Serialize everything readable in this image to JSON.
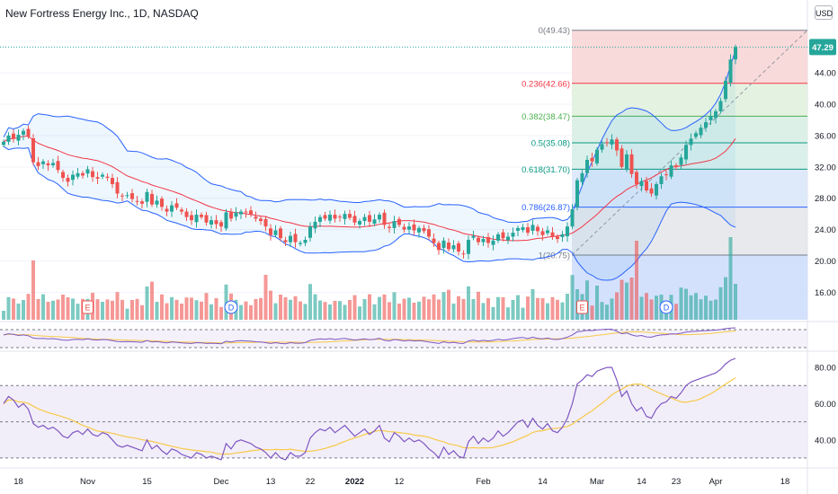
{
  "header": {
    "symbol_title": "New Fortress Energy Inc., 1D, NASDAQ",
    "currency": "USD"
  },
  "price_axis": {
    "ticks": [
      "44.00",
      "40.00",
      "36.00",
      "32.00",
      "28.00",
      "24.00",
      "20.00",
      "16.00"
    ],
    "last_price": "47.29"
  },
  "time_axis": {
    "labels": [
      "18",
      "Nov",
      "15",
      "Dec",
      "13",
      "22",
      "2022",
      "12",
      "Feb",
      "14",
      "Mar",
      "14",
      "23",
      "Apr",
      "18"
    ]
  },
  "rsi_axis": {
    "ticks": [
      "80.00",
      "60.00",
      "40.00"
    ]
  },
  "colors": {
    "up": "#26a69a",
    "down": "#ef5350",
    "bb_line": "#2962ff",
    "bb_basis": "#f23645",
    "rsi_line": "#7e57c2",
    "rsi_ma": "#f7c948",
    "last_price_label": "#26a69a"
  },
  "chart_data": [
    {
      "type": "candlestick",
      "title": "New Fortress Energy Inc., 1D, NASDAQ",
      "ylim": [
        12.5,
        51
      ],
      "x_dates": [
        "Oct 18",
        "Nov",
        "Nov 15",
        "Dec",
        "Dec 13",
        "Dec 22",
        "2022",
        "Jan 12",
        "Feb",
        "Feb 14",
        "Mar",
        "Mar 14",
        "Mar 23",
        "Apr",
        "Apr 18"
      ],
      "fibonacci_levels": [
        {
          "label": "0(49.43)",
          "value": 49.43,
          "color": "#787b86"
        },
        {
          "label": "0.236(42.66)",
          "value": 42.66,
          "color": "#f23645"
        },
        {
          "label": "0.382(38.47)",
          "value": 38.47,
          "color": "#4caf50"
        },
        {
          "label": "0.5(35.08)",
          "value": 35.08,
          "color": "#089981"
        },
        {
          "label": "0.618(31.70)",
          "value": 31.7,
          "color": "#089981"
        },
        {
          "label": "0.786(26.87)",
          "value": 26.87,
          "color": "#2962ff"
        },
        {
          "label": "1(20.75)",
          "value": 20.75,
          "color": "#787b86"
        }
      ],
      "volume_markers": [
        "E",
        "D",
        "E",
        "D"
      ],
      "closes": [
        35.2,
        36.0,
        35.6,
        36.1,
        36.6,
        35.9,
        32.6,
        32.1,
        32.7,
        32.2,
        32.5,
        31.6,
        30.6,
        30.1,
        31.0,
        31.2,
        30.9,
        31.7,
        30.7,
        30.5,
        31.0,
        30.6,
        29.8,
        28.6,
        28.3,
        28.4,
        27.9,
        27.6,
        27.3,
        28.8,
        27.2,
        27.7,
        26.9,
        26.3,
        27.1,
        26.8,
        26.3,
        25.6,
        25.2,
        25.9,
        25.6,
        24.9,
        25.2,
        24.7,
        24.4,
        26.2,
        25.4,
        26.2,
        26.3,
        26.2,
        25.9,
        25.4,
        25.1,
        24.4,
        23.3,
        23.9,
        22.9,
        22.4,
        23.2,
        22.4,
        22.3,
        22.7,
        24.4,
        25.0,
        25.6,
        25.4,
        25.9,
        25.4,
        25.6,
        26.0,
        25.5,
        24.9,
        25.1,
        25.6,
        25.0,
        25.3,
        25.9,
        24.6,
        24.2,
        25.1,
        24.6,
        24.0,
        24.4,
        23.9,
        24.2,
        23.8,
        23.1,
        22.3,
        21.4,
        22.6,
        21.5,
        22.0,
        21.2,
        20.9,
        22.7,
        23.2,
        22.4,
        22.8,
        22.3,
        22.6,
        23.4,
        22.9,
        23.1,
        23.6,
        24.2,
        24.3,
        23.6,
        24.6,
        23.8,
        23.3,
        23.9,
        23.1,
        22.8,
        23.4,
        24.4,
        26.6,
        30.3,
        31.2,
        32.9,
        32.7,
        34.2,
        34.9,
        35.1,
        35.5,
        34.1,
        32.0,
        33.6,
        31.1,
        29.8,
        30.2,
        29.0,
        28.6,
        29.8,
        30.8,
        31.0,
        32.2,
        32.0,
        33.2,
        34.8,
        35.6,
        36.3,
        37.0,
        37.7,
        38.5,
        39.1,
        40.4,
        43.0,
        45.7,
        47.29
      ],
      "bollinger": {
        "upper_peak": 40.0,
        "lower_trough": 16.2,
        "basis_end": 35.2
      }
    },
    {
      "type": "line",
      "title": "",
      "ylim": [
        25,
        88
      ],
      "y_ticks": [
        80,
        60,
        40
      ],
      "band": [
        30,
        70
      ],
      "series": [
        {
          "values": [
            60,
            64,
            62,
            58,
            60,
            57,
            49,
            47,
            48,
            46,
            47,
            45,
            42,
            41,
            44,
            45,
            43,
            46,
            43,
            42,
            44,
            43,
            40,
            37,
            36,
            37,
            36,
            35,
            34,
            40,
            35,
            37,
            34,
            32,
            35,
            34,
            32,
            31,
            30,
            33,
            32,
            30,
            31,
            30,
            29,
            38,
            35,
            39,
            40,
            39,
            38,
            36,
            35,
            33,
            30,
            33,
            30,
            29,
            33,
            31,
            31,
            33,
            41,
            44,
            46,
            45,
            47,
            44,
            46,
            48,
            45,
            42,
            44,
            46,
            43,
            45,
            48,
            41,
            39,
            44,
            42,
            39,
            41,
            39,
            40,
            38,
            35,
            33,
            30,
            36,
            32,
            34,
            31,
            30,
            39,
            42,
            38,
            41,
            39,
            41,
            45,
            42,
            44,
            47,
            50,
            51,
            47,
            52,
            48,
            46,
            49,
            45,
            44,
            47,
            52,
            60,
            71,
            73,
            76,
            75,
            78,
            79,
            80,
            80,
            73,
            64,
            67,
            60,
            56,
            58,
            53,
            52,
            57,
            60,
            61,
            64,
            63,
            66,
            70,
            72,
            73,
            74,
            75,
            76,
            77,
            79,
            82,
            84,
            85
          ]
        }
      ]
    }
  ]
}
